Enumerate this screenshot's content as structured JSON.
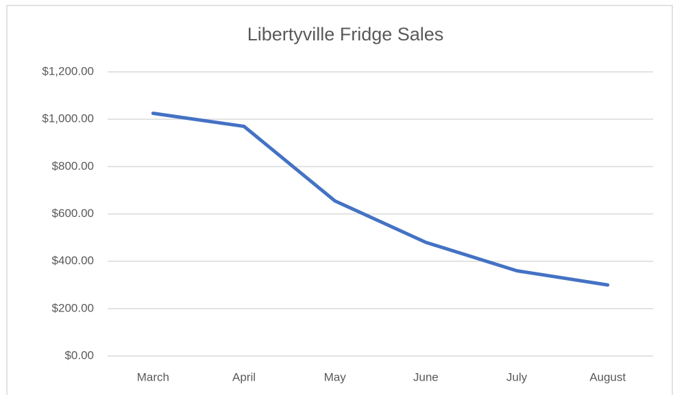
{
  "chart_data": {
    "type": "line",
    "title": "Libertyville Fridge Sales",
    "categories": [
      "March",
      "April",
      "May",
      "June",
      "July",
      "August"
    ],
    "series": [
      {
        "name": "Sales",
        "color": "#4472c4",
        "values": [
          1025,
          970,
          655,
          480,
          360,
          300
        ]
      }
    ],
    "ylim": [
      0,
      1200
    ],
    "yticks": [
      {
        "value": 0,
        "label": "$0.00"
      },
      {
        "value": 200,
        "label": "$200.00"
      },
      {
        "value": 400,
        "label": "$400.00"
      },
      {
        "value": 600,
        "label": "$600.00"
      },
      {
        "value": 800,
        "label": "$800.00"
      },
      {
        "value": 1000,
        "label": "$1,000.00"
      },
      {
        "value": 1200,
        "label": "$1,200.00"
      }
    ],
    "grid": true
  }
}
